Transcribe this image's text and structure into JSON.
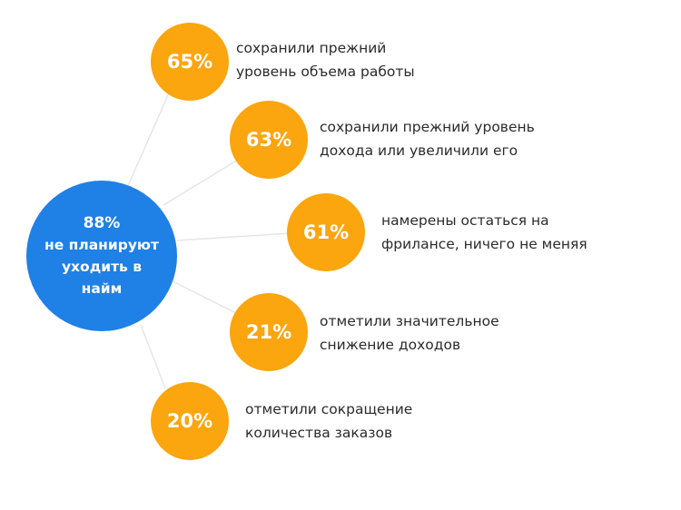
{
  "colors": {
    "center": "#1f80e6",
    "stat": "#fba50f",
    "connector": "#e6e6e6",
    "text": "#2b2b2b"
  },
  "center": {
    "percent": "88%",
    "label_line1": "не планируют",
    "label_line2": "уходить в",
    "label_line3": "найм"
  },
  "stats": [
    {
      "percent": "65%",
      "line1": "сохранили прежний",
      "line2": "уровень объема работы"
    },
    {
      "percent": "63%",
      "line1": "сохранили прежний уровень",
      "line2": "дохода или увеличили его"
    },
    {
      "percent": "61%",
      "line1": "намерены остаться на",
      "line2": "фрилансе, ничего не меняя"
    },
    {
      "percent": "21%",
      "line1": "отметили значительное",
      "line2": "снижение доходов"
    },
    {
      "percent": "20%",
      "line1": "отметили сокращение",
      "line2": "количества заказов"
    }
  ]
}
